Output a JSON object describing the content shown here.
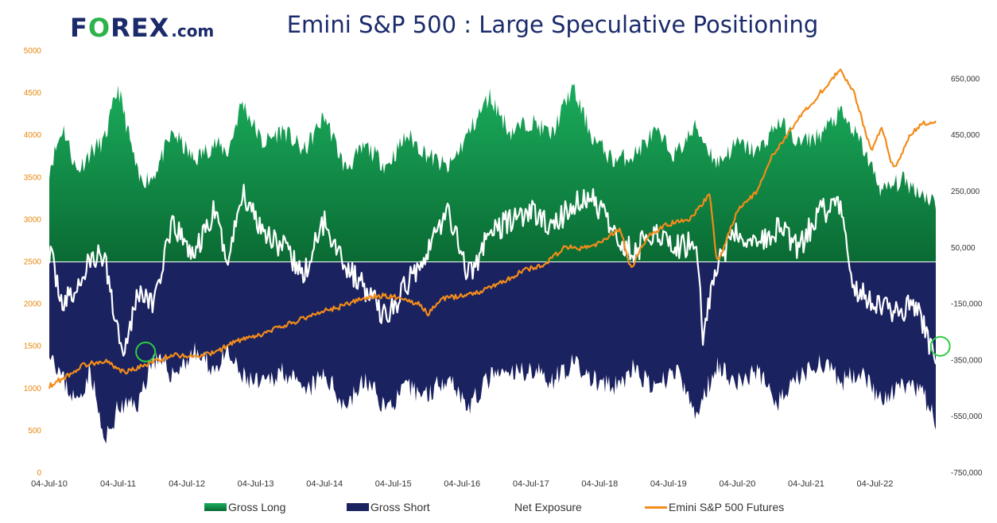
{
  "logo": {
    "brand_left": "F",
    "brand_o": "O",
    "brand_right": "REX",
    "suffix": ".com"
  },
  "chart_data": {
    "type": "area",
    "title": "Emini S&P 500 : Large Speculative Positioning",
    "x_ticks": [
      "04-Jul-10",
      "04-Jul-11",
      "04-Jul-12",
      "04-Jul-13",
      "04-Jul-14",
      "04-Jul-15",
      "04-Jul-16",
      "04-Jul-17",
      "04-Jul-18",
      "04-Jul-19",
      "04-Jul-20",
      "04-Jul-21",
      "04-Jul-22"
    ],
    "x_range": [
      2010.5,
      2023.5
    ],
    "left_axis": {
      "ticks": [
        "0",
        "500",
        "1000",
        "1500",
        "2000",
        "2500",
        "3000",
        "3500",
        "4000",
        "4500",
        "5000"
      ],
      "range": [
        0,
        5000
      ]
    },
    "right_axis": {
      "ticks": [
        "650,000",
        "450,000",
        "250,000",
        "50,000",
        "-150,000",
        "-350,000",
        "-550,000",
        "-750,000"
      ],
      "range": [
        -750000,
        750000
      ]
    },
    "series": [
      {
        "name": "Gross Long",
        "axis": "right",
        "x": [
          2010.5,
          2010.7,
          2010.9,
          2011.1,
          2011.3,
          2011.5,
          2011.8,
          2012.0,
          2012.3,
          2012.6,
          2012.9,
          2013.1,
          2013.3,
          2013.6,
          2013.9,
          2014.2,
          2014.5,
          2014.8,
          2015.1,
          2015.4,
          2015.7,
          2016.0,
          2016.3,
          2016.6,
          2016.9,
          2017.2,
          2017.5,
          2017.8,
          2018.1,
          2018.4,
          2018.7,
          2019.0,
          2019.3,
          2019.6,
          2019.9,
          2020.2,
          2020.5,
          2020.8,
          2021.1,
          2021.4,
          2021.7,
          2022.0,
          2022.3,
          2022.6,
          2022.9,
          2023.2,
          2023.4
        ],
        "values": [
          330000,
          480000,
          320000,
          390000,
          430000,
          620000,
          290000,
          300000,
          460000,
          360000,
          420000,
          390000,
          570000,
          420000,
          470000,
          390000,
          520000,
          330000,
          410000,
          340000,
          450000,
          380000,
          330000,
          460000,
          590000,
          460000,
          500000,
          450000,
          620000,
          440000,
          360000,
          380000,
          460000,
          380000,
          480000,
          350000,
          420000,
          390000,
          500000,
          420000,
          450000,
          530000,
          420000,
          250000,
          290000,
          240000,
          210000
        ]
      },
      {
        "name": "Gross Short",
        "axis": "right",
        "x": [
          2010.5,
          2010.7,
          2010.9,
          2011.1,
          2011.3,
          2011.5,
          2011.8,
          2012.0,
          2012.3,
          2012.6,
          2012.9,
          2013.1,
          2013.3,
          2013.6,
          2013.9,
          2014.2,
          2014.5,
          2014.8,
          2015.1,
          2015.4,
          2015.7,
          2016.0,
          2016.3,
          2016.6,
          2016.9,
          2017.2,
          2017.5,
          2017.8,
          2018.1,
          2018.4,
          2018.7,
          2019.0,
          2019.3,
          2019.6,
          2019.9,
          2020.2,
          2020.5,
          2020.8,
          2021.1,
          2021.4,
          2021.7,
          2022.0,
          2022.3,
          2022.6,
          2022.9,
          2023.2,
          2023.4
        ],
        "values": [
          -300000,
          -420000,
          -500000,
          -380000,
          -650000,
          -520000,
          -500000,
          -340000,
          -400000,
          -320000,
          -380000,
          -330000,
          -410000,
          -440000,
          -380000,
          -470000,
          -400000,
          -510000,
          -420000,
          -520000,
          -450000,
          -470000,
          -400000,
          -520000,
          -410000,
          -400000,
          -380000,
          -420000,
          -360000,
          -420000,
          -450000,
          -380000,
          -460000,
          -380000,
          -550000,
          -360000,
          -430000,
          -390000,
          -500000,
          -410000,
          -350000,
          -430000,
          -380000,
          -500000,
          -440000,
          -470000,
          -580000
        ]
      },
      {
        "name": "Net Exposure",
        "axis": "right",
        "x": [
          2010.5,
          2010.7,
          2010.9,
          2011.1,
          2011.3,
          2011.5,
          2011.6,
          2011.8,
          2012.0,
          2012.3,
          2012.6,
          2012.9,
          2013.1,
          2013.3,
          2013.6,
          2013.9,
          2014.2,
          2014.5,
          2014.8,
          2015.1,
          2015.4,
          2015.7,
          2016.0,
          2016.3,
          2016.6,
          2016.9,
          2017.2,
          2017.5,
          2017.8,
          2018.1,
          2018.4,
          2018.7,
          2019.0,
          2019.3,
          2019.6,
          2019.9,
          2020.0,
          2020.2,
          2020.5,
          2020.8,
          2021.1,
          2021.4,
          2021.7,
          2022.0,
          2022.2,
          2022.5,
          2022.8,
          2023.1,
          2023.3,
          2023.4
        ],
        "values": [
          40000,
          -150000,
          -100000,
          10000,
          20000,
          -250000,
          -300000,
          -100000,
          -150000,
          130000,
          20000,
          180000,
          0,
          250000,
          120000,
          50000,
          -50000,
          150000,
          -10000,
          -100000,
          -200000,
          -80000,
          50000,
          180000,
          -50000,
          100000,
          150000,
          180000,
          120000,
          200000,
          230000,
          100000,
          30000,
          120000,
          50000,
          70000,
          -250000,
          -10000,
          100000,
          60000,
          120000,
          50000,
          180000,
          200000,
          -100000,
          -150000,
          -180000,
          -150000,
          -300000,
          -330000
        ]
      },
      {
        "name": "Emini S&P 500 Futures",
        "axis": "left",
        "x": [
          2010.5,
          2010.8,
          2011.0,
          2011.3,
          2011.6,
          2011.8,
          2012.0,
          2012.3,
          2012.6,
          2012.9,
          2013.2,
          2013.5,
          2013.8,
          2014.1,
          2014.4,
          2014.7,
          2015.0,
          2015.3,
          2015.6,
          2015.9,
          2016.0,
          2016.2,
          2016.5,
          2016.8,
          2017.1,
          2017.4,
          2017.7,
          2018.0,
          2018.2,
          2018.5,
          2018.8,
          2018.95,
          2019.2,
          2019.5,
          2019.8,
          2020.1,
          2020.2,
          2020.25,
          2020.5,
          2020.8,
          2021.0,
          2021.3,
          2021.6,
          2021.9,
          2022.0,
          2022.2,
          2022.45,
          2022.6,
          2022.75,
          2022.8,
          2023.0,
          2023.2,
          2023.4
        ],
        "values": [
          1030,
          1170,
          1280,
          1330,
          1190,
          1250,
          1310,
          1400,
          1380,
          1420,
          1560,
          1610,
          1710,
          1800,
          1900,
          1960,
          2050,
          2100,
          2080,
          1990,
          1880,
          2060,
          2100,
          2160,
          2270,
          2400,
          2470,
          2680,
          2650,
          2720,
          2900,
          2420,
          2800,
          2950,
          3000,
          3300,
          2500,
          2560,
          3100,
          3350,
          3750,
          4100,
          4400,
          4700,
          4780,
          4500,
          3800,
          4100,
          3650,
          3600,
          4000,
          4150,
          4150
        ]
      }
    ],
    "annotations": [
      {
        "type": "circle",
        "x": 2011.9,
        "y_axis": "right",
        "y": -320000,
        "color": "#2ecc40"
      },
      {
        "type": "circle",
        "x": 2023.45,
        "y_axis": "right",
        "y": -300000,
        "color": "#2ecc40"
      }
    ],
    "colors": {
      "long_top": "#19a85a",
      "long_bottom": "#0b6e35",
      "short": "#1b2260",
      "net": "#ffffff",
      "futures": "#f28c1a"
    }
  },
  "legend": [
    {
      "label": "Gross Long",
      "kind": "area-green"
    },
    {
      "label": "Gross Short",
      "kind": "area-navy"
    },
    {
      "label": "Net Exposure",
      "kind": "line-white"
    },
    {
      "label": "Emini S&P 500 Futures",
      "kind": "line-orange"
    }
  ]
}
